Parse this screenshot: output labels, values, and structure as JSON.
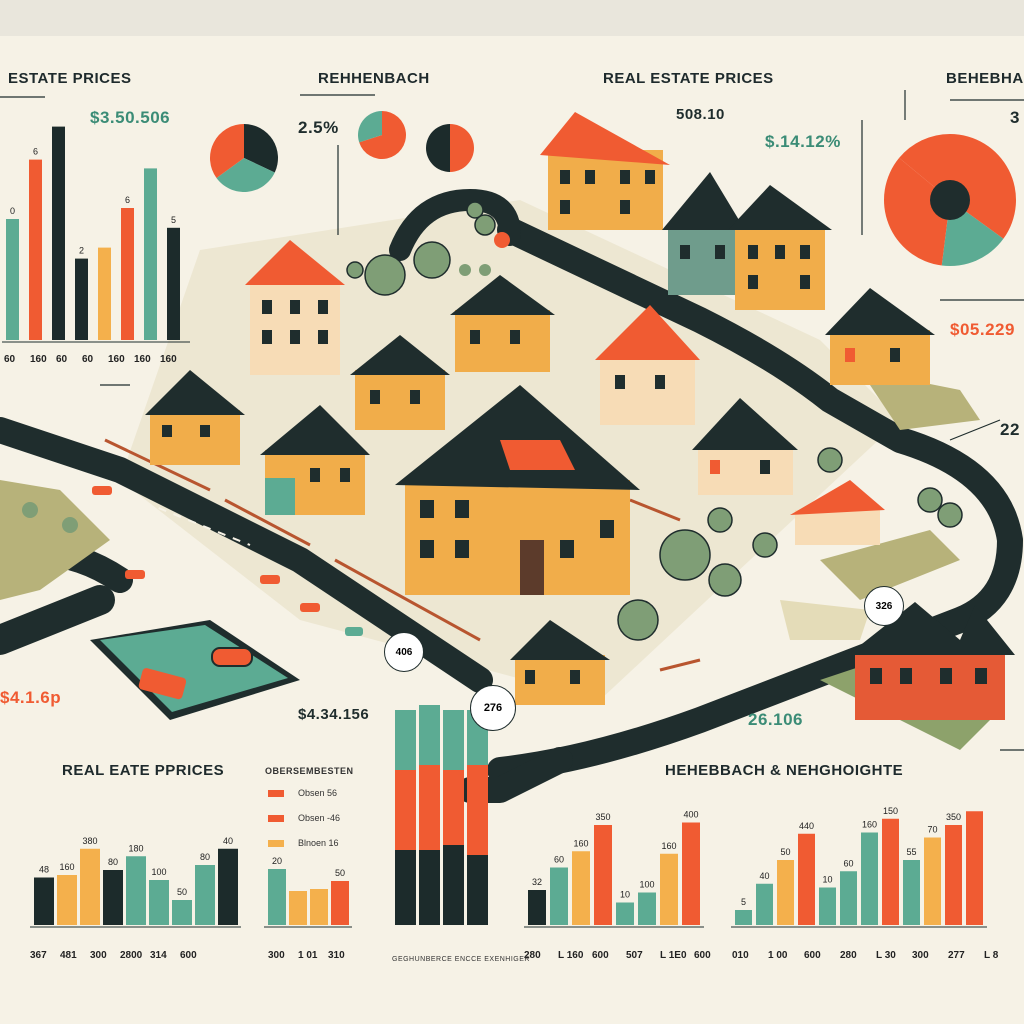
{
  "colors": {
    "background": "#f6f2e6",
    "orange": "#f05b32",
    "yellow": "#f4b04c",
    "teal": "#5cab93",
    "dark": "#1c2b2b",
    "road": "#1f2d2d",
    "roof": "#f05b32",
    "wall": "#f1ad4a",
    "grass": "#b7b27a",
    "water": "#5cab93"
  },
  "titles": {
    "top_left": "ESTATE PRICES",
    "top_center_left": "REHHENBACH",
    "top_center_right": "REAL ESTATE PRICES",
    "top_right": "BEHEBHAC",
    "bottom_left": "REAL EATE PPRICES",
    "bottom_center": "HEHEBBACH & NEHGHOIGHTE"
  },
  "values": {
    "price_top_left": "$3.50.506",
    "pct_top": "2.5%",
    "label_508": "508.10",
    "price_top_mid": "$.14.12%",
    "price_right": "$05.229",
    "num_right_22": "22",
    "num_right_top": "3",
    "price_bottom_left": "$4.1.6p",
    "price_bottom_mid": "$4.34.156",
    "bubble_406": "406",
    "bubble_276": "276",
    "bubble_326": "326",
    "num_26106": "26.106"
  },
  "legend": {
    "title": "OBERSEMBESTEN",
    "items": [
      "Obsen 56",
      "Obsen -46",
      "Blnoen 16"
    ]
  },
  "chart_tl": {
    "bars": [
      {
        "value": 55,
        "color": "teal",
        "label": "0"
      },
      {
        "value": 82,
        "color": "orange",
        "label": "6"
      },
      {
        "value": 97,
        "color": "dark",
        "label": ""
      },
      {
        "value": 37,
        "color": "dark",
        "label": "2"
      },
      {
        "value": 42,
        "color": "yellow",
        "label": ""
      },
      {
        "value": 60,
        "color": "orange",
        "label": "6"
      },
      {
        "value": 78,
        "color": "teal",
        "label": ""
      },
      {
        "value": 51,
        "color": "dark",
        "label": "5"
      }
    ],
    "ticks": [
      "60",
      "160",
      "60",
      "60",
      "160",
      "160",
      "160"
    ]
  },
  "chart_bl": {
    "bars": [
      {
        "value": 38,
        "color": "dark",
        "label": "48"
      },
      {
        "value": 40,
        "color": "yellow",
        "label": "160"
      },
      {
        "value": 61,
        "color": "yellow",
        "label": "380"
      },
      {
        "value": 44,
        "color": "dark",
        "label": "80"
      },
      {
        "value": 55,
        "color": "teal",
        "label": "180"
      },
      {
        "value": 36,
        "color": "teal",
        "label": "100"
      },
      {
        "value": 20,
        "color": "teal",
        "label": "50"
      },
      {
        "value": 48,
        "color": "teal",
        "label": "80"
      },
      {
        "value": 61,
        "color": "dark",
        "label": "40"
      }
    ],
    "ticks": [
      "367",
      "481",
      "300",
      "2800",
      "314",
      "600"
    ]
  },
  "chart_legend_bars": {
    "bars": [
      {
        "value": 28,
        "color": "teal",
        "label": "20"
      },
      {
        "value": 17,
        "color": "yellow",
        "label": ""
      },
      {
        "value": 18,
        "color": "yellow",
        "label": ""
      },
      {
        "value": 22,
        "color": "orange",
        "label": "50"
      }
    ],
    "ticks": [
      "300",
      "1 01",
      "310"
    ]
  },
  "chart_stacked": {
    "ticks": "GEGHUNBERCE ENCCE EXENHIGER"
  },
  "chart_bm": {
    "bars": [
      {
        "value": 28,
        "color": "dark",
        "label": "32"
      },
      {
        "value": 46,
        "color": "teal",
        "label": "60"
      },
      {
        "value": 59,
        "color": "yellow",
        "label": "160"
      },
      {
        "value": 80,
        "color": "orange",
        "label": "350"
      },
      {
        "value": 18,
        "color": "teal",
        "label": "10"
      },
      {
        "value": 26,
        "color": "teal",
        "label": "100"
      },
      {
        "value": 57,
        "color": "yellow",
        "label": "160"
      },
      {
        "value": 82,
        "color": "orange",
        "label": "400"
      }
    ],
    "ticks": [
      "280",
      "L 160",
      "600",
      "507",
      "L 1E0",
      "600"
    ]
  },
  "chart_br": {
    "bars": [
      {
        "value": 12,
        "color": "teal",
        "label": "5"
      },
      {
        "value": 33,
        "color": "teal",
        "label": "40"
      },
      {
        "value": 52,
        "color": "yellow",
        "label": "50"
      },
      {
        "value": 73,
        "color": "orange",
        "label": "440"
      },
      {
        "value": 30,
        "color": "teal",
        "label": "10"
      },
      {
        "value": 43,
        "color": "teal",
        "label": "60"
      },
      {
        "value": 74,
        "color": "teal",
        "label": "160"
      },
      {
        "value": 85,
        "color": "orange",
        "label": "150"
      },
      {
        "value": 52,
        "color": "teal",
        "label": "55"
      },
      {
        "value": 70,
        "color": "yellow",
        "label": "70"
      },
      {
        "value": 80,
        "color": "orange",
        "label": "350"
      },
      {
        "value": 91,
        "color": "orange",
        "label": ""
      }
    ],
    "ticks": [
      "010",
      "1 00",
      "600",
      "280",
      "L 30",
      "300",
      "277",
      "L 8"
    ]
  },
  "pies": {
    "pie1": [
      {
        "value": 0.32,
        "color": "dark"
      },
      {
        "value": 0.33,
        "color": "teal"
      },
      {
        "value": 0.35,
        "color": "orange"
      }
    ],
    "pie2": [
      {
        "value": 0.7,
        "color": "orange"
      },
      {
        "value": 0.3,
        "color": "teal"
      }
    ],
    "pie3": [
      {
        "value": 0.5,
        "color": "orange"
      },
      {
        "value": 0.5,
        "color": "dark"
      }
    ],
    "pie_big": [
      {
        "value": 0.35,
        "color": "orange"
      },
      {
        "value": 0.17,
        "color": "teal"
      },
      {
        "value": 0.34,
        "color": "orange"
      },
      {
        "value": 0.14,
        "color": "orange"
      }
    ]
  }
}
